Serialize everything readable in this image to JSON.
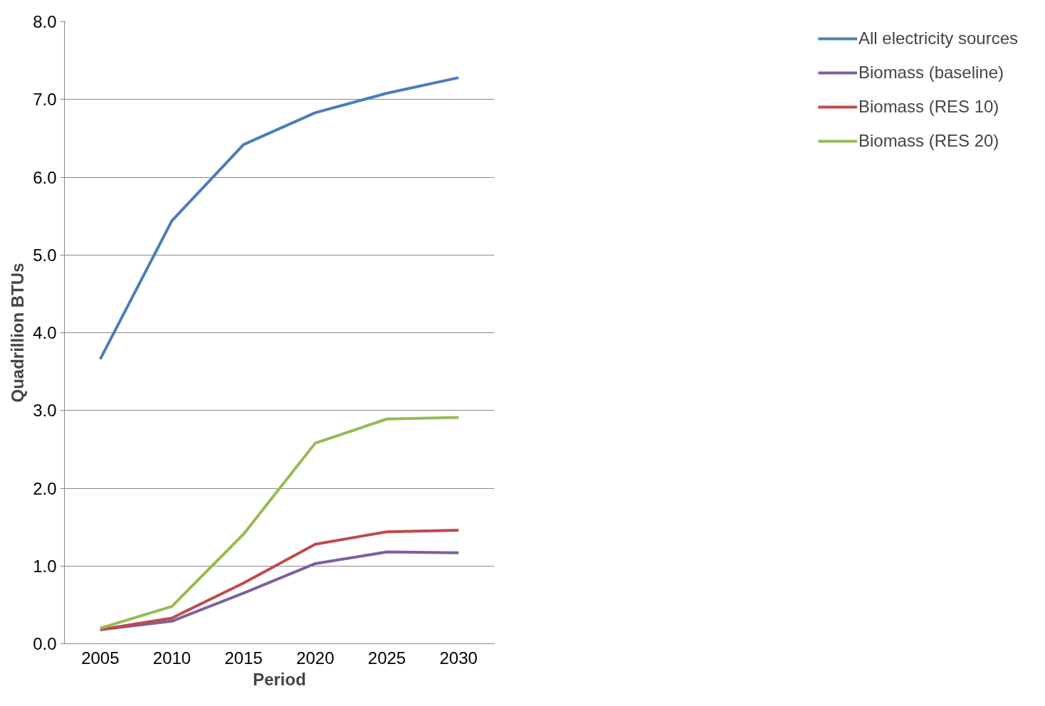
{
  "chart_data": {
    "type": "line",
    "xlabel": "Period",
    "ylabel": "Quadrillion BTUs",
    "categories": [
      "2005",
      "2010",
      "2015",
      "2020",
      "2025",
      "2030"
    ],
    "series": [
      {
        "name": "All electricity sources",
        "color": "#4a7ebb",
        "values": [
          3.66,
          5.44,
          6.42,
          6.83,
          7.08,
          7.28
        ]
      },
      {
        "name": "Biomass (baseline)",
        "color": "#7d5fa0",
        "values": [
          0.18,
          0.29,
          0.65,
          1.03,
          1.18,
          1.17
        ]
      },
      {
        "name": "Biomass (RES 10)",
        "color": "#be4b48",
        "values": [
          0.18,
          0.33,
          0.78,
          1.28,
          1.44,
          1.46
        ]
      },
      {
        "name": "Biomass (RES 20)",
        "color": "#98b954",
        "values": [
          0.2,
          0.48,
          1.41,
          2.58,
          2.89,
          2.91
        ]
      }
    ],
    "ylim": [
      0,
      8
    ],
    "yticks": [
      {
        "value": 0,
        "label": "0.0"
      },
      {
        "value": 1,
        "label": "1.0"
      },
      {
        "value": 2,
        "label": "2.0"
      },
      {
        "value": 3,
        "label": "3.0"
      },
      {
        "value": 4,
        "label": "4.0"
      },
      {
        "value": 5,
        "label": "5.0"
      },
      {
        "value": 6,
        "label": "6.0"
      },
      {
        "value": 7,
        "label": "7.0"
      },
      {
        "value": 8,
        "label": "8.0"
      }
    ],
    "grid": "y",
    "legend": "right",
    "marker": "none",
    "line_style": "solid"
  }
}
